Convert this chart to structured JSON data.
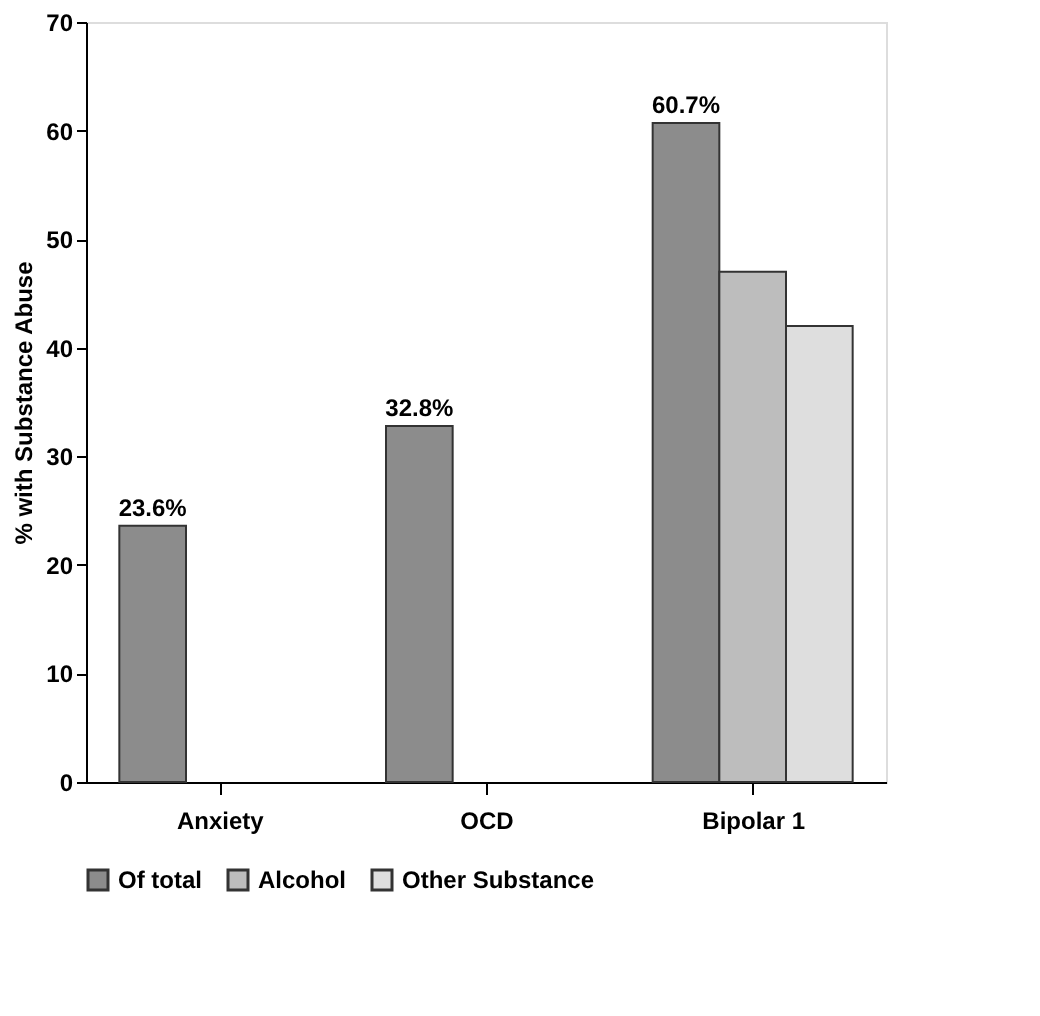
{
  "chart_data": {
    "type": "bar",
    "ylabel": "% with Substance Abuse",
    "categories": [
      "Anxiety",
      "OCD",
      "Bipolar 1"
    ],
    "series": [
      {
        "name": "Of total",
        "color": "#8c8c8c",
        "values": [
          23.6,
          32.8,
          60.7
        ],
        "value_labels": [
          "23.6%",
          "32.8%",
          "60.7%"
        ]
      },
      {
        "name": "Alcohol",
        "color": "#bdbdbd",
        "values": [
          null,
          null,
          47
        ]
      },
      {
        "name": "Other Substance",
        "color": "#dedede",
        "values": [
          null,
          null,
          42
        ]
      }
    ],
    "ylim": [
      0,
      70
    ],
    "yticks": [
      0,
      10,
      20,
      30,
      40,
      50,
      60,
      70
    ],
    "grid": false,
    "legend": "bottom"
  }
}
